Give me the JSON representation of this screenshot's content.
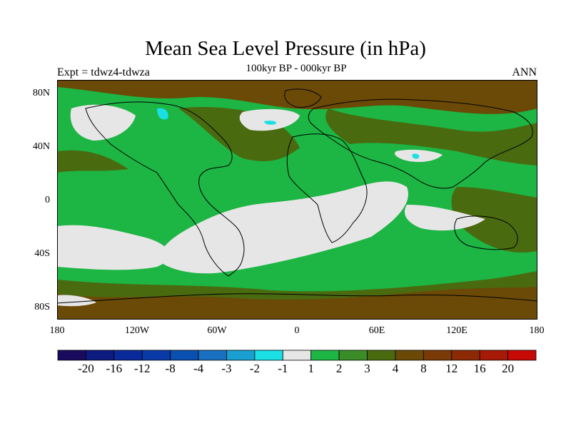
{
  "header": {
    "title": "Mean Sea Level Pressure (in hPa)",
    "subtitle": "100kyr BP - 000kyr BP",
    "experiment": "Expt = tdwz4-tdwza",
    "season": "ANN"
  },
  "map": {
    "latitude_labels": [
      "80N",
      "40N",
      "0",
      "40S",
      "80S"
    ],
    "longitude_labels": [
      "180",
      "120W",
      "60W",
      "0",
      "60E",
      "120E",
      "180"
    ]
  },
  "legend": {
    "colors": [
      "#1a0a5e",
      "#0d1a80",
      "#0a2a9a",
      "#0a3aa8",
      "#0a50b0",
      "#1a70c0",
      "#1aa0d0",
      "#1ae0e6",
      "#e6e6e6",
      "#1db544",
      "#3a8c26",
      "#4a6a10",
      "#6a4a06",
      "#7a3a06",
      "#8c2a06",
      "#a61a06",
      "#c80a06"
    ],
    "labels": [
      "-20",
      "-16",
      "-12",
      "-8",
      "-4",
      "-3",
      "-2",
      "-1",
      "1",
      "2",
      "3",
      "4",
      "8",
      "12",
      "16",
      "20"
    ]
  }
}
